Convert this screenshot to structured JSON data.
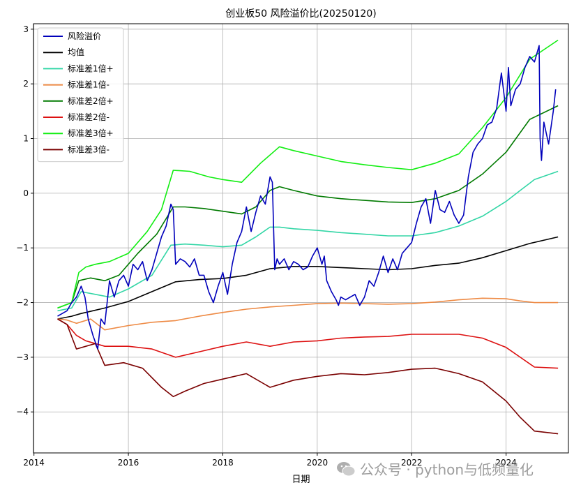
{
  "chart_data": {
    "type": "line",
    "title": "创业板50 风险溢价比(20250120)",
    "xlabel": "日期",
    "ylabel": "",
    "xlim": [
      2013.99,
      2025.32
    ],
    "ylim": [
      -4.75,
      3.1
    ],
    "x_ticks": [
      2014,
      2016,
      2018,
      2020,
      2022,
      2024
    ],
    "y_ticks": [
      -4,
      -3,
      -2,
      -1,
      0,
      1,
      2,
      3
    ],
    "grid": true,
    "legend_position": "upper-left",
    "series": [
      {
        "name": "风险溢价",
        "color": "#0000bb",
        "width": 1.6,
        "x": [
          2014.5,
          2014.6,
          2014.7,
          2014.8,
          2014.9,
          2015.0,
          2015.08,
          2015.15,
          2015.25,
          2015.35,
          2015.42,
          2015.5,
          2015.6,
          2015.7,
          2015.8,
          2015.9,
          2016.0,
          2016.1,
          2016.2,
          2016.3,
          2016.4,
          2016.5,
          2016.6,
          2016.7,
          2016.8,
          2016.85,
          2016.9,
          2016.95,
          2017.0,
          2017.1,
          2017.2,
          2017.3,
          2017.4,
          2017.5,
          2017.6,
          2017.7,
          2017.8,
          2017.9,
          2018.0,
          2018.1,
          2018.2,
          2018.3,
          2018.4,
          2018.5,
          2018.6,
          2018.7,
          2018.8,
          2018.9,
          2019.0,
          2019.05,
          2019.1,
          2019.15,
          2019.2,
          2019.3,
          2019.4,
          2019.5,
          2019.6,
          2019.7,
          2019.8,
          2019.9,
          2020.0,
          2020.1,
          2020.15,
          2020.2,
          2020.3,
          2020.4,
          2020.45,
          2020.5,
          2020.6,
          2020.7,
          2020.8,
          2020.9,
          2021.0,
          2021.1,
          2021.2,
          2021.3,
          2021.4,
          2021.5,
          2021.6,
          2021.7,
          2021.8,
          2021.9,
          2022.0,
          2022.1,
          2022.2,
          2022.3,
          2022.4,
          2022.5,
          2022.6,
          2022.7,
          2022.8,
          2022.9,
          2023.0,
          2023.1,
          2023.2,
          2023.3,
          2023.4,
          2023.5,
          2023.6,
          2023.7,
          2023.8,
          2023.9,
          2024.0,
          2024.05,
          2024.1,
          2024.2,
          2024.3,
          2024.4,
          2024.5,
          2024.6,
          2024.7,
          2024.72,
          2024.75,
          2024.8,
          2024.9,
          2025.0,
          2025.05
        ],
        "y": [
          -2.25,
          -2.2,
          -2.15,
          -2.0,
          -1.9,
          -1.7,
          -1.9,
          -2.3,
          -2.6,
          -2.85,
          -2.3,
          -2.4,
          -1.6,
          -1.9,
          -1.6,
          -1.5,
          -1.7,
          -1.3,
          -1.4,
          -1.25,
          -1.6,
          -1.4,
          -1.1,
          -0.8,
          -0.6,
          -0.4,
          -0.2,
          -0.3,
          -1.3,
          -1.2,
          -1.25,
          -1.35,
          -1.2,
          -1.5,
          -1.5,
          -1.8,
          -2.0,
          -1.7,
          -1.45,
          -1.85,
          -1.3,
          -0.9,
          -0.7,
          -0.25,
          -0.7,
          -0.35,
          -0.05,
          -0.2,
          0.3,
          0.2,
          -1.4,
          -1.2,
          -1.3,
          -1.2,
          -1.4,
          -1.25,
          -1.3,
          -1.4,
          -1.35,
          -1.15,
          -1.0,
          -1.3,
          -1.15,
          -1.6,
          -1.8,
          -1.95,
          -2.05,
          -1.9,
          -1.95,
          -1.9,
          -1.85,
          -2.05,
          -1.9,
          -1.6,
          -1.7,
          -1.45,
          -1.15,
          -1.45,
          -1.2,
          -1.4,
          -1.1,
          -1.0,
          -0.9,
          -0.55,
          -0.25,
          -0.1,
          -0.55,
          0.05,
          -0.3,
          -0.35,
          -0.15,
          -0.4,
          -0.55,
          -0.4,
          0.3,
          0.75,
          0.9,
          1.0,
          1.25,
          1.3,
          1.55,
          2.2,
          1.5,
          2.3,
          1.6,
          1.9,
          2.0,
          2.3,
          2.5,
          2.4,
          2.7,
          1.0,
          0.6,
          1.3,
          0.9,
          1.5,
          1.9
        ]
      },
      {
        "name": "均值",
        "color": "#000000",
        "width": 1.6,
        "x": [
          2014.5,
          2014.8,
          2015.0,
          2015.5,
          2016.0,
          2016.5,
          2017.0,
          2017.5,
          2018.0,
          2018.5,
          2019.0,
          2019.5,
          2020.0,
          2020.5,
          2021.0,
          2021.5,
          2022.0,
          2022.5,
          2023.0,
          2023.5,
          2024.0,
          2024.5,
          2025.1
        ],
        "y": [
          -2.3,
          -2.25,
          -2.2,
          -2.1,
          -1.98,
          -1.8,
          -1.62,
          -1.58,
          -1.56,
          -1.5,
          -1.38,
          -1.34,
          -1.34,
          -1.36,
          -1.38,
          -1.4,
          -1.38,
          -1.32,
          -1.28,
          -1.18,
          -1.05,
          -0.92,
          -0.8
        ]
      },
      {
        "name": "标准差1倍+",
        "color": "#33d6a6",
        "width": 1.6,
        "x": [
          2014.5,
          2014.8,
          2015.0,
          2015.3,
          2015.6,
          2016.0,
          2016.5,
          2016.9,
          2017.2,
          2017.6,
          2018.0,
          2018.4,
          2018.7,
          2019.0,
          2019.2,
          2019.5,
          2020.0,
          2020.5,
          2021.0,
          2021.5,
          2022.0,
          2022.5,
          2023.0,
          2023.5,
          2024.0,
          2024.3,
          2024.6,
          2025.1
        ],
        "y": [
          -2.15,
          -2.1,
          -1.8,
          -1.85,
          -1.9,
          -1.75,
          -1.5,
          -0.95,
          -0.93,
          -0.95,
          -0.98,
          -0.95,
          -0.8,
          -0.62,
          -0.62,
          -0.65,
          -0.68,
          -0.72,
          -0.75,
          -0.78,
          -0.78,
          -0.72,
          -0.6,
          -0.42,
          -0.15,
          0.05,
          0.25,
          0.4
        ]
      },
      {
        "name": "标准差1倍-",
        "color": "#ee8a44",
        "width": 1.6,
        "x": [
          2014.5,
          2014.7,
          2014.9,
          2015.2,
          2015.5,
          2016.0,
          2016.5,
          2017.0,
          2017.5,
          2018.0,
          2018.5,
          2019.0,
          2019.5,
          2020.0,
          2020.5,
          2021.0,
          2021.5,
          2022.0,
          2022.5,
          2023.0,
          2023.5,
          2024.0,
          2024.3,
          2024.6,
          2025.1
        ],
        "y": [
          -2.3,
          -2.32,
          -2.38,
          -2.3,
          -2.5,
          -2.42,
          -2.36,
          -2.33,
          -2.25,
          -2.18,
          -2.12,
          -2.08,
          -2.05,
          -2.02,
          -2.01,
          -2.02,
          -2.03,
          -2.02,
          -1.99,
          -1.95,
          -1.92,
          -1.93,
          -1.97,
          -2.0,
          -2.0
        ]
      },
      {
        "name": "标准差2倍+",
        "color": "#007a00",
        "width": 1.6,
        "x": [
          2014.5,
          2014.8,
          2014.95,
          2015.2,
          2015.5,
          2015.8,
          2016.2,
          2016.6,
          2016.95,
          2017.2,
          2017.6,
          2018.0,
          2018.4,
          2018.7,
          2019.0,
          2019.2,
          2019.5,
          2020.0,
          2020.5,
          2021.0,
          2021.5,
          2022.0,
          2022.5,
          2023.0,
          2023.5,
          2024.0,
          2024.5,
          2025.1
        ],
        "y": [
          -2.1,
          -2.0,
          -1.6,
          -1.55,
          -1.6,
          -1.5,
          -1.1,
          -0.75,
          -0.25,
          -0.25,
          -0.28,
          -0.33,
          -0.38,
          -0.25,
          0.05,
          0.12,
          0.05,
          -0.05,
          -0.1,
          -0.13,
          -0.16,
          -0.17,
          -0.1,
          0.05,
          0.35,
          0.75,
          1.35,
          1.6
        ]
      },
      {
        "name": "标准差2倍-",
        "color": "#dd1111",
        "width": 1.6,
        "x": [
          2014.5,
          2014.7,
          2014.9,
          2015.1,
          2015.3,
          2015.5,
          2016.0,
          2016.5,
          2017.0,
          2017.5,
          2018.0,
          2018.5,
          2019.0,
          2019.5,
          2020.0,
          2020.5,
          2021.0,
          2021.5,
          2022.0,
          2022.5,
          2023.0,
          2023.5,
          2024.0,
          2024.3,
          2024.6,
          2025.1
        ],
        "y": [
          -2.3,
          -2.4,
          -2.6,
          -2.7,
          -2.75,
          -2.8,
          -2.8,
          -2.85,
          -3.0,
          -2.9,
          -2.8,
          -2.72,
          -2.8,
          -2.72,
          -2.7,
          -2.65,
          -2.63,
          -2.62,
          -2.58,
          -2.58,
          -2.58,
          -2.65,
          -2.82,
          -3.0,
          -3.18,
          -3.2
        ]
      },
      {
        "name": "标准差3倍+",
        "color": "#11ee11",
        "width": 1.6,
        "x": [
          2014.5,
          2014.8,
          2014.95,
          2015.1,
          2015.3,
          2015.6,
          2016.0,
          2016.4,
          2016.7,
          2016.95,
          2017.3,
          2017.7,
          2018.0,
          2018.4,
          2018.8,
          2019.2,
          2019.5,
          2020.0,
          2020.5,
          2021.0,
          2021.5,
          2022.0,
          2022.5,
          2023.0,
          2023.5,
          2024.0,
          2024.5,
          2025.1
        ],
        "y": [
          -2.1,
          -2.0,
          -1.45,
          -1.35,
          -1.3,
          -1.25,
          -1.1,
          -0.7,
          -0.3,
          0.42,
          0.4,
          0.3,
          0.25,
          0.2,
          0.55,
          0.85,
          0.78,
          0.68,
          0.58,
          0.52,
          0.47,
          0.43,
          0.55,
          0.72,
          1.2,
          1.75,
          2.45,
          2.8
        ]
      },
      {
        "name": "标准差3倍-",
        "color": "#7a0000",
        "width": 1.6,
        "x": [
          2014.5,
          2014.7,
          2014.9,
          2015.1,
          2015.3,
          2015.5,
          2015.9,
          2016.3,
          2016.7,
          2016.95,
          2017.2,
          2017.6,
          2018.0,
          2018.5,
          2019.0,
          2019.5,
          2020.0,
          2020.5,
          2021.0,
          2021.5,
          2022.0,
          2022.5,
          2023.0,
          2023.5,
          2024.0,
          2024.3,
          2024.6,
          2025.1
        ],
        "y": [
          -2.3,
          -2.4,
          -2.85,
          -2.8,
          -2.75,
          -3.15,
          -3.1,
          -3.2,
          -3.55,
          -3.72,
          -3.62,
          -3.48,
          -3.4,
          -3.3,
          -3.55,
          -3.42,
          -3.35,
          -3.3,
          -3.32,
          -3.28,
          -3.22,
          -3.2,
          -3.3,
          -3.45,
          -3.8,
          -4.1,
          -4.35,
          -4.4
        ]
      }
    ]
  },
  "watermark": {
    "text": "公众号 · python与低频量化",
    "icon": "wechat-icon"
  }
}
